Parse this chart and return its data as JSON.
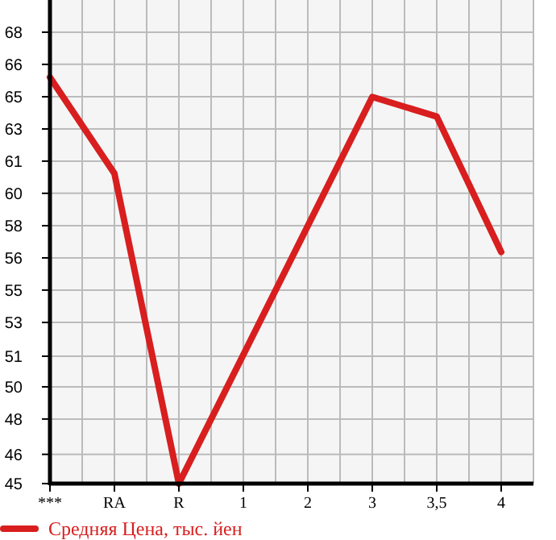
{
  "chart_data": {
    "type": "line",
    "categories": [
      "***",
      "RA",
      "R",
      "1",
      "2",
      "3",
      "3,5",
      "4"
    ],
    "series": [
      {
        "name": "Средняя Цена, тыс. йен",
        "color": "#d81e1e",
        "values": [
          65.7,
          60.8,
          45,
          null,
          null,
          64.7,
          63.7,
          56.8
        ]
      }
    ],
    "ylim": [
      45,
      69.64
    ],
    "yticks": [
      45,
      {
        "value": 46.49,
        "label": "46"
      },
      {
        "value": 48.29,
        "label": "48"
      },
      {
        "value": 49.93,
        "label": "50"
      },
      {
        "value": 51.49,
        "label": "51"
      },
      {
        "value": 53.21,
        "label": "53"
      },
      {
        "value": 54.86,
        "label": "55"
      },
      {
        "value": 56.5,
        "label": "56"
      },
      {
        "value": 58.14,
        "label": "58"
      },
      {
        "value": 59.79,
        "label": "60"
      },
      {
        "value": 61.43,
        "label": "61"
      },
      {
        "value": 63.07,
        "label": "63"
      },
      {
        "value": 64.71,
        "label": "65"
      },
      {
        "value": 66.36,
        "label": "66"
      },
      68
    ],
    "grid": true,
    "legend": "bottom",
    "marker": "none",
    "line_style": "solid"
  }
}
